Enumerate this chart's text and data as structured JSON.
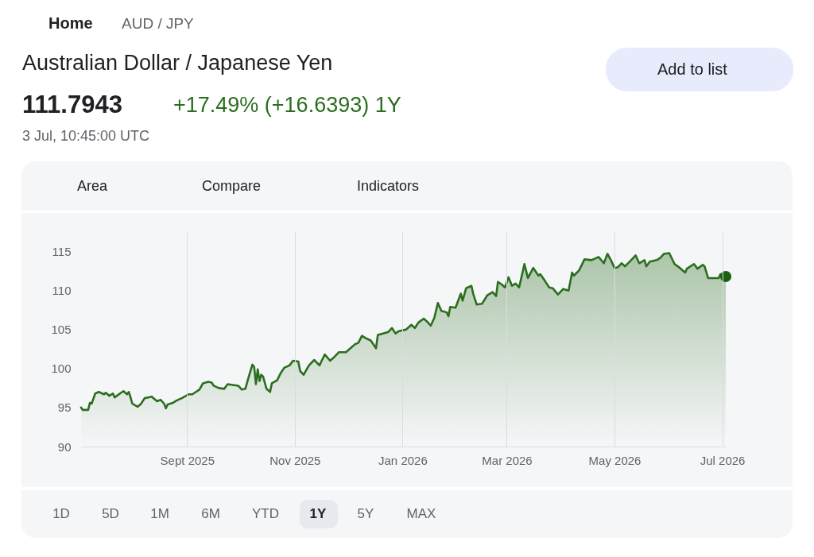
{
  "chart_data": {
    "type": "area",
    "title": "Australian Dollar / Japanese Yen",
    "annotations": [
      "Home",
      "AUD / JPY",
      "Add to list",
      "111.7943",
      "+17.49% (+16.6393) 1Y",
      "3 Jul, 10:45:00 UTC",
      "Area",
      "Compare",
      "Indicators",
      "1D",
      "5D",
      "1M",
      "6M",
      "YTD",
      "1Y",
      "5Y",
      "MAX"
    ],
    "xlim": [
      "2025-07-03",
      "2026-07-03"
    ],
    "xticks": [
      {
        "value": "2025-09-01",
        "label": "Sept 2025"
      },
      {
        "value": "2025-11-01",
        "label": "Nov 2025"
      },
      {
        "value": "2026-01-01",
        "label": "Jan 2026"
      },
      {
        "value": "2026-03-01",
        "label": "Mar 2026"
      },
      {
        "value": "2026-05-01",
        "label": "May 2026"
      },
      {
        "value": "2026-07-01",
        "label": "Jul 2026"
      }
    ],
    "ylim": [
      90,
      117.5
    ],
    "yticks": [
      90,
      95,
      100,
      105,
      110,
      115
    ],
    "grid": "x",
    "series": [
      {
        "color": "#2b6e1e",
        "x": [
          "2025-07-03",
          "2025-07-04",
          "2025-07-07",
          "2025-07-08",
          "2025-07-09",
          "2025-07-11",
          "2025-07-13",
          "2025-07-16",
          "2025-07-17",
          "2025-07-19",
          "2025-07-21",
          "2025-07-22",
          "2025-07-25",
          "2025-07-27",
          "2025-07-29",
          "2025-07-30",
          "2025-07-31",
          "2025-08-01",
          "2025-08-04",
          "2025-08-06",
          "2025-08-08",
          "2025-08-10",
          "2025-08-12",
          "2025-08-15",
          "2025-08-17",
          "2025-08-19",
          "2025-08-20",
          "2025-08-21",
          "2025-08-24",
          "2025-08-26",
          "2025-08-29",
          "2025-09-02",
          "2025-09-04",
          "2025-09-06",
          "2025-09-08",
          "2025-09-10",
          "2025-09-13",
          "2025-09-15",
          "2025-09-16",
          "2025-09-19",
          "2025-09-22",
          "2025-09-24",
          "2025-09-27",
          "2025-09-30",
          "2025-10-02",
          "2025-10-04",
          "2025-10-06",
          "2025-10-08",
          "2025-10-09",
          "2025-10-10",
          "2025-10-11",
          "2025-10-12",
          "2025-10-13",
          "2025-10-14",
          "2025-10-16",
          "2025-10-18",
          "2025-10-19",
          "2025-10-22",
          "2025-10-24",
          "2025-10-26",
          "2025-10-29",
          "2025-10-31",
          "2025-11-03",
          "2025-11-04",
          "2025-11-06",
          "2025-11-09",
          "2025-11-12",
          "2025-11-15",
          "2025-11-16",
          "2025-11-18",
          "2025-11-21",
          "2025-11-23",
          "2025-11-26",
          "2025-11-30",
          "2025-12-02",
          "2025-12-05",
          "2025-12-07",
          "2025-12-09",
          "2025-12-12",
          "2025-12-14",
          "2025-12-17",
          "2025-12-18",
          "2025-12-21",
          "2025-12-24",
          "2025-12-26",
          "2025-12-28",
          "2025-12-30",
          "2026-01-03",
          "2026-01-06",
          "2026-01-08",
          "2026-01-10",
          "2026-01-13",
          "2026-01-15",
          "2026-01-17",
          "2026-01-19",
          "2026-01-21",
          "2026-01-23",
          "2026-01-26",
          "2026-01-27",
          "2026-01-28",
          "2026-01-31",
          "2026-02-03",
          "2026-02-04",
          "2026-02-06",
          "2026-02-09",
          "2026-02-10",
          "2026-02-12",
          "2026-02-15",
          "2026-02-18",
          "2026-02-21",
          "2026-02-23",
          "2026-02-24",
          "2026-02-26",
          "2026-02-28",
          "2026-03-02",
          "2026-03-04",
          "2026-03-06",
          "2026-03-08",
          "2026-03-11",
          "2026-03-13",
          "2026-03-16",
          "2026-03-19",
          "2026-03-20",
          "2026-03-23",
          "2026-03-25",
          "2026-03-27",
          "2026-03-30",
          "2026-04-02",
          "2026-04-05",
          "2026-04-07",
          "2026-04-08",
          "2026-04-11",
          "2026-04-14",
          "2026-04-18",
          "2026-04-22",
          "2026-04-25",
          "2026-04-27",
          "2026-04-29",
          "2026-05-01",
          "2026-05-03",
          "2026-05-05",
          "2026-05-07",
          "2026-05-10",
          "2026-05-13",
          "2026-05-15",
          "2026-05-18",
          "2026-05-19",
          "2026-05-21",
          "2026-05-25",
          "2026-05-27",
          "2026-05-29",
          "2026-06-01",
          "2026-06-04",
          "2026-06-07",
          "2026-06-10",
          "2026-06-11",
          "2026-06-15",
          "2026-06-17",
          "2026-06-20",
          "2026-06-21",
          "2026-06-23",
          "2026-06-25",
          "2026-06-29",
          "2026-06-30",
          "2026-07-03"
        ],
        "values": [
          95.0,
          94.7,
          94.7,
          95.6,
          95.5,
          96.8,
          97.0,
          96.7,
          96.9,
          96.5,
          96.8,
          96.3,
          96.8,
          97.1,
          96.7,
          97.0,
          96.3,
          95.5,
          95.1,
          95.5,
          96.2,
          96.3,
          96.4,
          95.8,
          96.0,
          95.5,
          94.9,
          95.4,
          95.6,
          95.9,
          96.2,
          96.7,
          96.7,
          97.0,
          97.3,
          98.1,
          98.3,
          98.2,
          97.8,
          97.5,
          97.4,
          98.0,
          97.9,
          97.8,
          97.3,
          97.4,
          99.0,
          100.5,
          100.2,
          98.0,
          99.9,
          98.4,
          99.2,
          99.0,
          97.4,
          97.0,
          98.1,
          98.5,
          99.4,
          100.1,
          100.4,
          101.0,
          100.9,
          99.7,
          99.2,
          100.4,
          101.1,
          100.4,
          100.9,
          101.8,
          101.0,
          101.4,
          102.1,
          102.1,
          102.5,
          103.1,
          103.3,
          104.2,
          103.8,
          103.6,
          102.6,
          104.3,
          104.5,
          104.7,
          105.2,
          104.5,
          104.8,
          105.0,
          105.6,
          105.2,
          105.9,
          106.4,
          106.0,
          105.5,
          106.5,
          108.4,
          107.4,
          107.2,
          106.7,
          107.9,
          107.8,
          109.6,
          108.7,
          110.3,
          110.6,
          109.6,
          108.2,
          108.3,
          109.4,
          109.8,
          109.3,
          111.1,
          110.8,
          110.4,
          111.7,
          110.6,
          110.9,
          110.4,
          113.4,
          111.6,
          112.9,
          111.9,
          112.1,
          111.1,
          110.4,
          110.3,
          109.5,
          110.2,
          110.0,
          112.3,
          111.9,
          112.6,
          114.0,
          113.9,
          114.3,
          113.5,
          114.7,
          113.9,
          112.9,
          113.0,
          113.5,
          113.1,
          113.8,
          114.5,
          113.5,
          113.9,
          113.1,
          113.7,
          113.9,
          114.2,
          114.7,
          114.8,
          113.4,
          112.9,
          112.3,
          112.8,
          113.4,
          112.8,
          113.3,
          113.1,
          111.6,
          111.6,
          111.6,
          112.1,
          111.8
        ]
      },
      {
        "type": "scatter",
        "marker": "circle",
        "color": "#1f5f14",
        "x": [
          "2026-07-03"
        ],
        "values": [
          111.8
        ]
      }
    ]
  }
}
